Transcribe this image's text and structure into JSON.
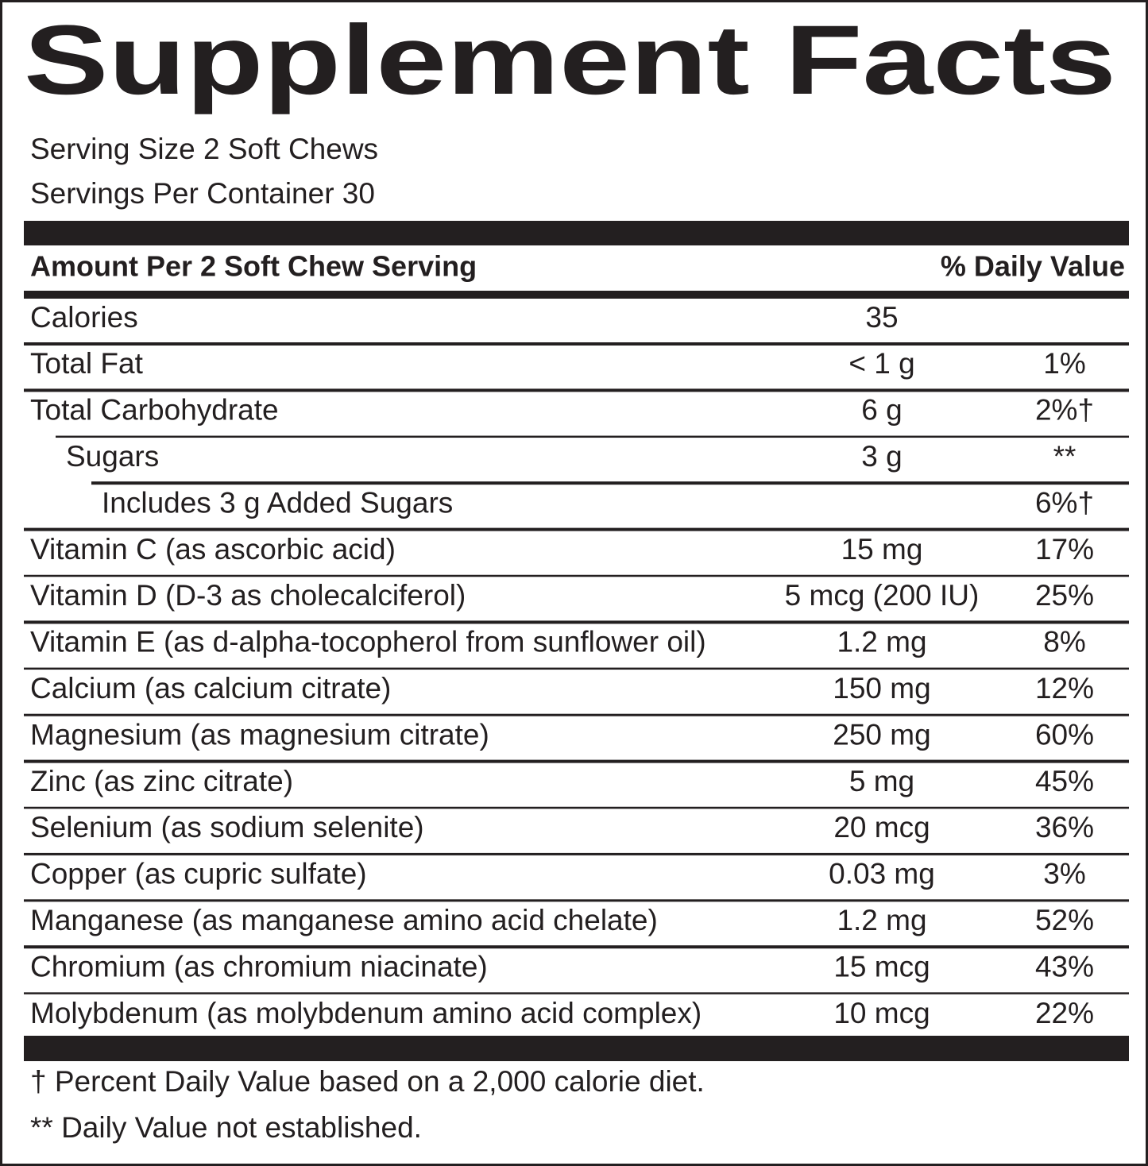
{
  "title": "Supplement Facts",
  "serving_size": "Serving Size 2 Soft Chews",
  "servings_per_container": "Servings Per Container 30",
  "header": {
    "amount": "Amount Per 2 Soft Chew Serving",
    "daily_value": "% Daily Value"
  },
  "rows": [
    {
      "name": "Calories",
      "amount": "35"
    },
    {
      "name": "Total Fat",
      "amount": "< 1 g",
      "daily_value": "1%"
    },
    {
      "name": "Total Carbohydrate",
      "amount": "6 g",
      "daily_value": "2%†"
    },
    {
      "name": "Sugars",
      "amount": "3 g",
      "daily_value": "**"
    },
    {
      "name": "Includes 3 g Added Sugars",
      "daily_value": "6%†"
    },
    {
      "name": "Vitamin C (as ascorbic acid)",
      "amount": "15 mg",
      "daily_value": "17%"
    },
    {
      "name": "Vitamin D (D-3 as cholecalciferol)",
      "amount": "5 mcg (200 IU)",
      "daily_value": "25%"
    },
    {
      "name": "Vitamin E (as d-alpha-tocopherol from sunflower oil)",
      "amount": "1.2 mg",
      "daily_value": "8%"
    },
    {
      "name": "Calcium (as calcium citrate)",
      "amount": "150 mg",
      "daily_value": "12%"
    },
    {
      "name": "Magnesium (as magnesium citrate)",
      "amount": "250 mg",
      "daily_value": "60%"
    },
    {
      "name": "Zinc (as zinc citrate)",
      "amount": "5 mg",
      "daily_value": "45%"
    },
    {
      "name": "Selenium (as sodium selenite)",
      "amount": "20 mcg",
      "daily_value": "36%"
    },
    {
      "name": "Copper (as cupric sulfate)",
      "amount": "0.03 mg",
      "daily_value": "3%"
    },
    {
      "name": "Manganese (as manganese amino acid chelate)",
      "amount": "1.2 mg",
      "daily_value": "52%"
    },
    {
      "name": "Chromium (as chromium niacinate)",
      "amount": "15 mcg",
      "daily_value": "43%"
    },
    {
      "name": "Molybdenum (as molybdenum amino acid complex)",
      "amount": "10 mcg",
      "daily_value": "22%"
    }
  ],
  "footnotes": [
    "† Percent Daily Value based on a 2,000 calorie diet.",
    "** Daily Value not established."
  ]
}
